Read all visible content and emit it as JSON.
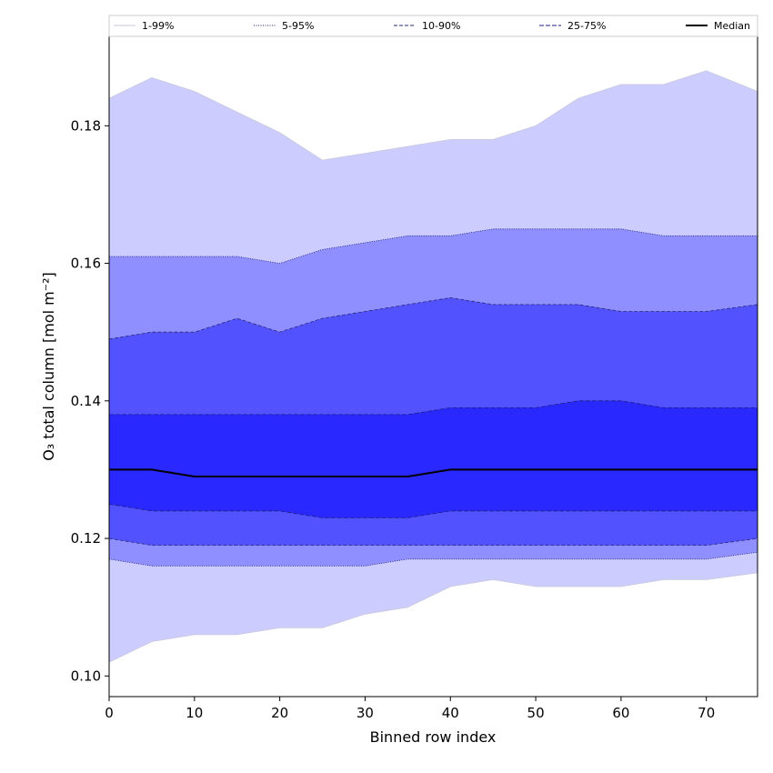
{
  "chart_data": {
    "type": "area",
    "xlabel": "Binned row index",
    "ylabel": "O₃ total column [mol m⁻²]",
    "xlim": [
      0,
      76
    ],
    "ylim": [
      0.097,
      0.193
    ],
    "x_ticks": [
      0,
      10,
      20,
      30,
      40,
      50,
      60,
      70
    ],
    "y_ticks": [
      0.1,
      0.12,
      0.14,
      0.16,
      0.18
    ],
    "y_tick_labels": [
      "0.10",
      "0.12",
      "0.14",
      "0.16",
      "0.18"
    ],
    "legend_position": "top",
    "x": [
      0,
      5,
      10,
      15,
      20,
      25,
      30,
      35,
      40,
      45,
      50,
      55,
      60,
      65,
      70,
      76
    ],
    "bands": [
      {
        "name": "1-99%",
        "color": "#ccccff",
        "line_color": "#c8c8dc",
        "dash": "none",
        "lower": [
          0.102,
          0.105,
          0.106,
          0.106,
          0.107,
          0.107,
          0.109,
          0.11,
          0.113,
          0.114,
          0.113,
          0.113,
          0.113,
          0.114,
          0.114,
          0.115
        ],
        "upper": [
          0.184,
          0.187,
          0.185,
          0.182,
          0.179,
          0.175,
          0.176,
          0.177,
          0.178,
          0.178,
          0.18,
          0.184,
          0.186,
          0.186,
          0.188,
          0.185
        ]
      },
      {
        "name": "5-95%",
        "color": "#8f8fff",
        "line_color": "#1a1a66",
        "dash": "1,1.5",
        "lower": [
          0.117,
          0.116,
          0.116,
          0.116,
          0.116,
          0.116,
          0.116,
          0.117,
          0.117,
          0.117,
          0.117,
          0.117,
          0.117,
          0.117,
          0.117,
          0.118
        ],
        "upper": [
          0.161,
          0.161,
          0.161,
          0.161,
          0.16,
          0.162,
          0.163,
          0.164,
          0.164,
          0.165,
          0.165,
          0.165,
          0.165,
          0.164,
          0.164,
          0.164
        ]
      },
      {
        "name": "10-90%",
        "color": "#5252ff",
        "line_color": "#2a2a77",
        "dash": "4,2",
        "lower": [
          0.12,
          0.119,
          0.119,
          0.119,
          0.119,
          0.119,
          0.119,
          0.119,
          0.119,
          0.119,
          0.119,
          0.119,
          0.119,
          0.119,
          0.119,
          0.12
        ],
        "upper": [
          0.149,
          0.15,
          0.15,
          0.152,
          0.15,
          0.152,
          0.153,
          0.154,
          0.155,
          0.154,
          0.154,
          0.154,
          0.153,
          0.153,
          0.153,
          0.154
        ]
      },
      {
        "name": "25-75%",
        "color": "#2828ff",
        "line_color": "#1c1c88",
        "dash": "5,2",
        "lower": [
          0.125,
          0.124,
          0.124,
          0.124,
          0.124,
          0.123,
          0.123,
          0.123,
          0.124,
          0.124,
          0.124,
          0.124,
          0.124,
          0.124,
          0.124,
          0.124
        ],
        "upper": [
          0.138,
          0.138,
          0.138,
          0.138,
          0.138,
          0.138,
          0.138,
          0.138,
          0.139,
          0.139,
          0.139,
          0.14,
          0.14,
          0.139,
          0.139,
          0.139
        ]
      }
    ],
    "median": {
      "name": "Median",
      "color": "#000000",
      "values": [
        0.13,
        0.13,
        0.129,
        0.129,
        0.129,
        0.129,
        0.129,
        0.129,
        0.13,
        0.13,
        0.13,
        0.13,
        0.13,
        0.13,
        0.13,
        0.13
      ]
    }
  }
}
